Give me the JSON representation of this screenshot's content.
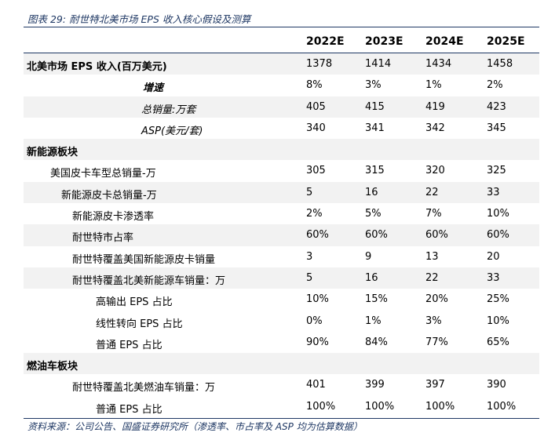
{
  "figure_title": "图表 29:  耐世特北美市场 EPS 收入核心假设及测算",
  "columns": [
    "2022E",
    "2023E",
    "2024E",
    "2025E"
  ],
  "rows": [
    {
      "label": "北美市场 EPS 收入(百万美元)",
      "values": [
        "1378",
        "1414",
        "1434",
        "1458"
      ]
    },
    {
      "label": "增速",
      "values": [
        "8%",
        "3%",
        "1%",
        "2%"
      ]
    },
    {
      "label": "总销量:万套",
      "values": [
        "405",
        "415",
        "419",
        "423"
      ]
    },
    {
      "label": "ASP(美元/套)",
      "values": [
        "340",
        "341",
        "342",
        "345"
      ]
    },
    {
      "label": "新能源板块",
      "values": [
        "",
        "",
        "",
        ""
      ]
    },
    {
      "label": "美国皮卡车型总销量-万",
      "values": [
        "305",
        "315",
        "320",
        "325"
      ]
    },
    {
      "label": "新能源皮卡总销量-万",
      "values": [
        "5",
        "16",
        "22",
        "33"
      ]
    },
    {
      "label": "新能源皮卡渗透率",
      "values": [
        "2%",
        "5%",
        "7%",
        "10%"
      ]
    },
    {
      "label": "耐世特市占率",
      "values": [
        "60%",
        "60%",
        "60%",
        "60%"
      ]
    },
    {
      "label": "耐世特覆盖美国新能源皮卡销量",
      "values": [
        "3",
        "9",
        "13",
        "20"
      ]
    },
    {
      "label": "耐世特覆盖北美新能源车销量：万",
      "values": [
        "5",
        "16",
        "22",
        "33"
      ]
    },
    {
      "label": "高输出 EPS 占比",
      "values": [
        "10%",
        "15%",
        "20%",
        "25%"
      ]
    },
    {
      "label": "线性转向 EPS 占比",
      "values": [
        "0%",
        "1%",
        "3%",
        "10%"
      ]
    },
    {
      "label": "普通 EPS 占比",
      "values": [
        "90%",
        "84%",
        "77%",
        "65%"
      ]
    },
    {
      "label": "燃油车板块",
      "values": [
        "",
        "",
        "",
        ""
      ]
    },
    {
      "label": "耐世特覆盖北美燃油车销量：万",
      "values": [
        "401",
        "399",
        "397",
        "390"
      ]
    },
    {
      "label": "普通 EPS 占比",
      "values": [
        "100%",
        "100%",
        "100%",
        "100%"
      ]
    }
  ],
  "source": "资料来源：公司公告、国盛证券研究所（渗透率、市占率及 ASP 均为估算数据）"
}
